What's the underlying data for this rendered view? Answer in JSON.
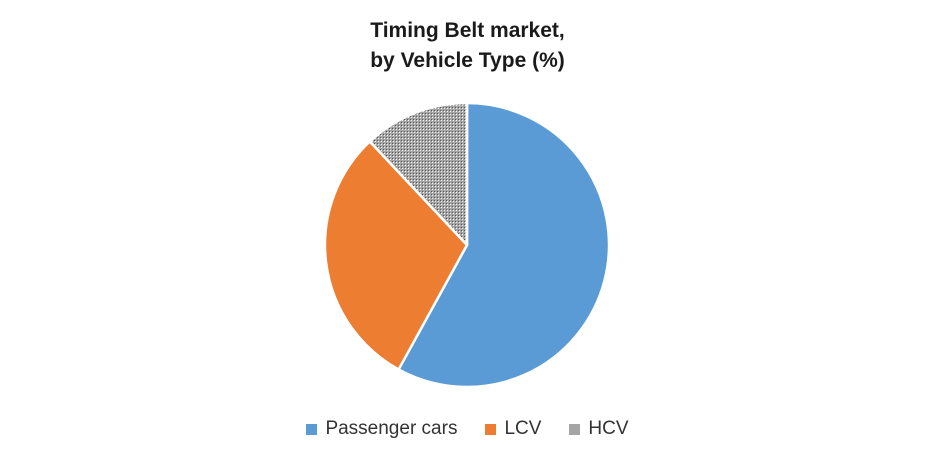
{
  "chart_data": {
    "type": "pie",
    "title_lines": [
      "Timing Belt market,",
      "by Vehicle Type (%)"
    ],
    "slices": [
      {
        "name": "Passenger cars",
        "value": 58,
        "color": "#5b9bd5",
        "pattern": "solid"
      },
      {
        "name": "LCV",
        "value": 30,
        "color": "#ed7d31",
        "pattern": "solid"
      },
      {
        "name": "HCV",
        "value": 12,
        "color": "#a5a5a5",
        "pattern": "dotted"
      }
    ],
    "start_angle": "12 o'clock",
    "direction": "clockwise",
    "legend_position": "bottom"
  }
}
